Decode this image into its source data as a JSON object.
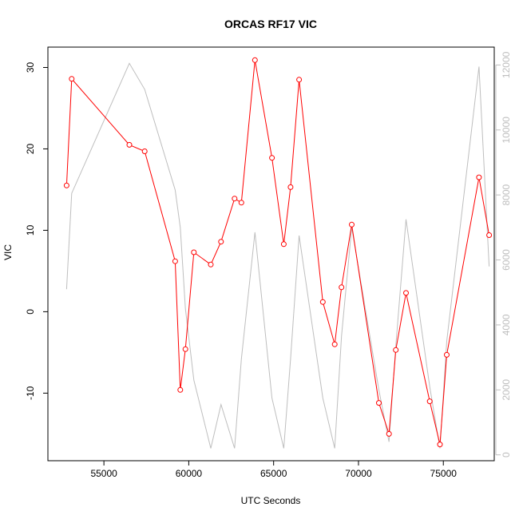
{
  "chart_data": {
    "type": "line",
    "title": "ORCAS RF17 VIC",
    "xlabel": "UTC Seconds",
    "ylabel": "VIC",
    "xlim": [
      51700,
      78000
    ],
    "ylim": [
      -18.3,
      32.5
    ],
    "y2lim": [
      -180,
      12550
    ],
    "x_ticks": [
      55000,
      60000,
      65000,
      70000,
      75000
    ],
    "y_ticks": [
      -10,
      0,
      10,
      20,
      30
    ],
    "y2_ticks": [
      0,
      2000,
      4000,
      6000,
      8000,
      10000,
      12000
    ],
    "grid": false,
    "colors": {
      "primary": "#ff0000",
      "secondary": "#bebebe",
      "axis": "#000000"
    },
    "series": [
      {
        "axis": "left",
        "marker": "open-circle",
        "x": [
          52800,
          53100,
          56500,
          57400,
          59200,
          59500,
          59800,
          60300,
          61300,
          61900,
          62700,
          63100,
          63900,
          64900,
          65600,
          66000,
          66500,
          67900,
          68600,
          69000,
          69600,
          71200,
          71800,
          72200,
          72800,
          74200,
          74800,
          75200,
          77100,
          77700
        ],
        "values": [
          15.5,
          28.6,
          20.5,
          19.7,
          6.2,
          -9.6,
          -4.6,
          7.3,
          5.8,
          8.6,
          13.9,
          13.4,
          30.9,
          18.9,
          8.3,
          15.3,
          28.5,
          1.2,
          -4.0,
          3.0,
          10.7,
          -11.2,
          -15.0,
          -4.7,
          2.3,
          -11.0,
          -16.3,
          -5.3,
          16.5,
          9.4
        ]
      },
      {
        "axis": "right",
        "marker": "none",
        "x": [
          52800,
          53100,
          56500,
          57400,
          59200,
          59500,
          59800,
          60300,
          61300,
          61900,
          62700,
          63100,
          63900,
          64900,
          65600,
          66000,
          66500,
          67900,
          68600,
          69000,
          69600,
          71200,
          71800,
          72200,
          72800,
          74200,
          74800,
          75200,
          77100,
          77700
        ],
        "values": [
          5100,
          8050,
          12050,
          11250,
          8150,
          7000,
          4500,
          2300,
          200,
          1550,
          200,
          2950,
          6850,
          1750,
          200,
          2950,
          6750,
          1750,
          200,
          3650,
          7000,
          2000,
          400,
          3350,
          7250,
          2100,
          200,
          3500,
          11950,
          5800
        ]
      }
    ]
  }
}
